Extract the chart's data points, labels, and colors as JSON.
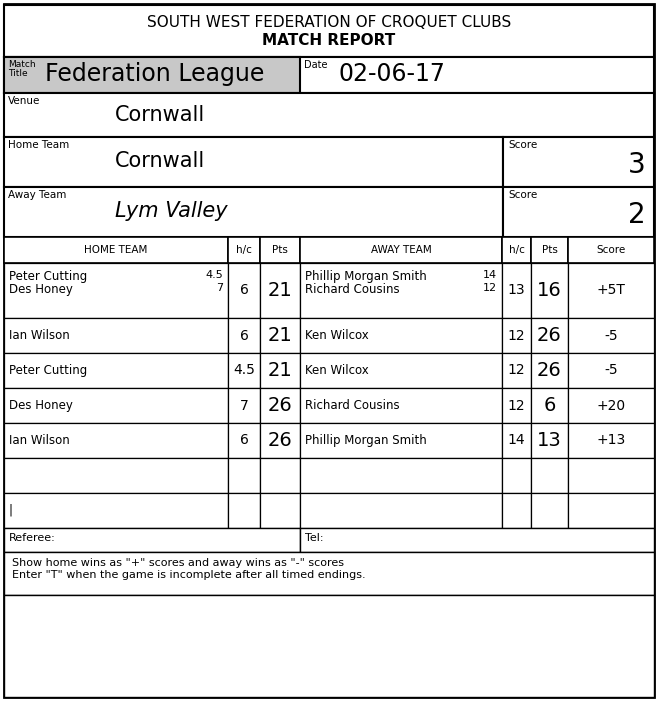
{
  "title_line1": "SOUTH WEST FEDERATION OF CROQUET CLUBS",
  "title_line2": "MATCH REPORT",
  "match_title_value": "Federation League",
  "date_label": "Date",
  "date_value": "02-06-17",
  "venue_label": "Venue",
  "venue_value": "Cornwall",
  "home_team_label": "Home Team",
  "home_team_value": "Cornwall",
  "home_score_label": "Score",
  "home_score_value": "3",
  "away_team_label": "Away Team",
  "away_team_value": "Lym Valley",
  "away_score_label": "Score",
  "away_score_value": "2",
  "referee_label": "Referee:",
  "tel_label": "Tel:",
  "footer_text": "Show home wins as \"+\" scores and away wins as \"-\" scores\nEnter \"T\" when the game is incomplete after all timed endings.",
  "bg_color": "#ffffff",
  "header_bg": "#c8c8c8",
  "match_rows": [
    {
      "home": "Peter Cutting",
      "home_hc": "4.5",
      "home2": "Des Honey",
      "home2_hc": "7",
      "hc": "6",
      "pts": "21",
      "away": "Phillip Morgan Smith",
      "away_hc_val": "14",
      "away2": "Richard Cousins",
      "away2_hc_val": "12",
      "away_hc": "13",
      "away_pts": "16",
      "score": "+5T",
      "double": true
    },
    {
      "home": "Ian Wilson",
      "home_hc": "",
      "home2": "",
      "home2_hc": "",
      "hc": "6",
      "pts": "21",
      "away": "Ken Wilcox",
      "away_hc_val": "",
      "away2": "",
      "away2_hc_val": "",
      "away_hc": "12",
      "away_pts": "26",
      "score": "-5",
      "double": false
    },
    {
      "home": "Peter Cutting",
      "home_hc": "4.5",
      "home2": "",
      "home2_hc": "",
      "hc": "4.5",
      "pts": "21",
      "away": "Ken Wilcox",
      "away_hc_val": "",
      "away2": "",
      "away2_hc_val": "",
      "away_hc": "12",
      "away_pts": "26",
      "score": "-5",
      "double": false
    },
    {
      "home": "Des Honey",
      "home_hc": "7",
      "home2": "",
      "home2_hc": "",
      "hc": "7",
      "pts": "26",
      "away": "Richard Cousins",
      "away_hc_val": "",
      "away2": "",
      "away2_hc_val": "",
      "away_hc": "12",
      "away_pts": "6",
      "score": "+20",
      "double": false
    },
    {
      "home": "Ian Wilson",
      "home_hc": "6",
      "home2": "",
      "home2_hc": "",
      "hc": "6",
      "pts": "26",
      "away": "Phillip Morgan Smith",
      "away_hc_val": "",
      "away2": "",
      "away2_hc_val": "",
      "away_hc": "14",
      "away_pts": "13",
      "score": "+13",
      "double": false
    },
    {
      "home": "",
      "home_hc": "",
      "home2": "",
      "home2_hc": "",
      "hc": "",
      "pts": "",
      "away": "",
      "away_hc_val": "",
      "away2": "",
      "away2_hc_val": "",
      "away_hc": "",
      "away_pts": "",
      "score": "",
      "double": false
    },
    {
      "home": "|",
      "home_hc": "",
      "home2": "",
      "home2_hc": "",
      "hc": "",
      "pts": "",
      "away": "",
      "away_hc_val": "",
      "away2": "",
      "away2_hc_val": "",
      "away_hc": "",
      "away_pts": "",
      "score": "",
      "double": false
    }
  ]
}
